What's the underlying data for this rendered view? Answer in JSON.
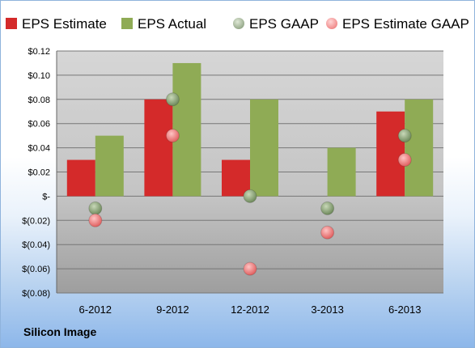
{
  "company": "Silicon Image",
  "colors": {
    "eps_estimate": "#d42a2a",
    "eps_actual": "#8fab55",
    "eps_gaap": "#7f9a6b",
    "eps_estimate_gaap": "#f08080"
  },
  "chart_data": {
    "type": "bar",
    "categories": [
      "6-2012",
      "9-2012",
      "12-2012",
      "3-2013",
      "6-2013"
    ],
    "series": [
      {
        "name": "EPS Estimate",
        "kind": "bar",
        "values": [
          0.03,
          0.08,
          0.03,
          null,
          0.07
        ]
      },
      {
        "name": "EPS Actual",
        "kind": "bar",
        "values": [
          0.05,
          0.11,
          0.08,
          0.04,
          0.08
        ]
      },
      {
        "name": "EPS GAAP",
        "kind": "scatter",
        "values": [
          -0.01,
          0.08,
          0.0,
          -0.01,
          0.05
        ]
      },
      {
        "name": "EPS Estimate GAAP",
        "kind": "scatter",
        "values": [
          -0.02,
          0.05,
          -0.06,
          -0.03,
          0.03
        ]
      }
    ],
    "y_ticks": [
      0.12,
      0.1,
      0.08,
      0.06,
      0.04,
      0.02,
      0,
      -0.02,
      -0.04,
      -0.06,
      -0.08
    ],
    "y_tick_labels": [
      "$0.12",
      "$0.10",
      "$0.08",
      "$0.06",
      "$0.04",
      "$0.02",
      "$-",
      "$(0.02)",
      "$(0.04)",
      "$(0.06)",
      "$(0.08)"
    ],
    "ylim": [
      -0.08,
      0.12
    ],
    "grid": true,
    "legend_position": "top",
    "title": "",
    "xlabel": "",
    "ylabel": ""
  }
}
